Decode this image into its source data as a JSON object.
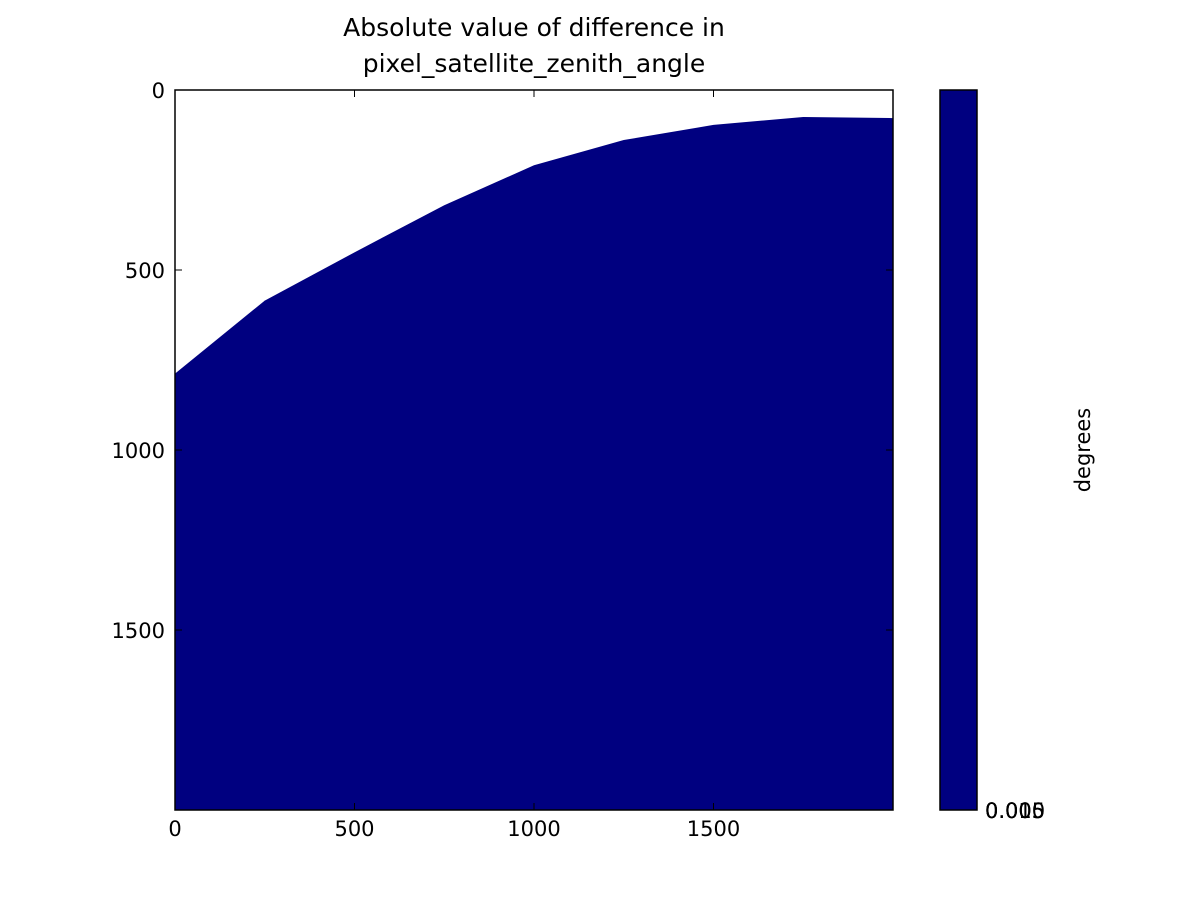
{
  "chart_data": {
    "type": "image",
    "title": [
      "Absolute value of difference in",
      "pixel_satellite_zenith_angle"
    ],
    "xlim": [
      0,
      2000
    ],
    "ylim": [
      2000,
      0
    ],
    "xticks": [
      0,
      500,
      1000,
      1500
    ],
    "yticks": [
      0,
      500,
      1000,
      1500
    ],
    "boundary": {
      "color": "#000080",
      "x": [
        0,
        250,
        500,
        750,
        1000,
        1250,
        1500,
        1750,
        2000
      ],
      "y": [
        788,
        585,
        451,
        320,
        209,
        139,
        97,
        75,
        78
      ]
    },
    "colorbar": {
      "label": "degrees",
      "color": "#000080",
      "tick_labels": [
        "0.000",
        "0.005",
        "0.015"
      ]
    }
  }
}
